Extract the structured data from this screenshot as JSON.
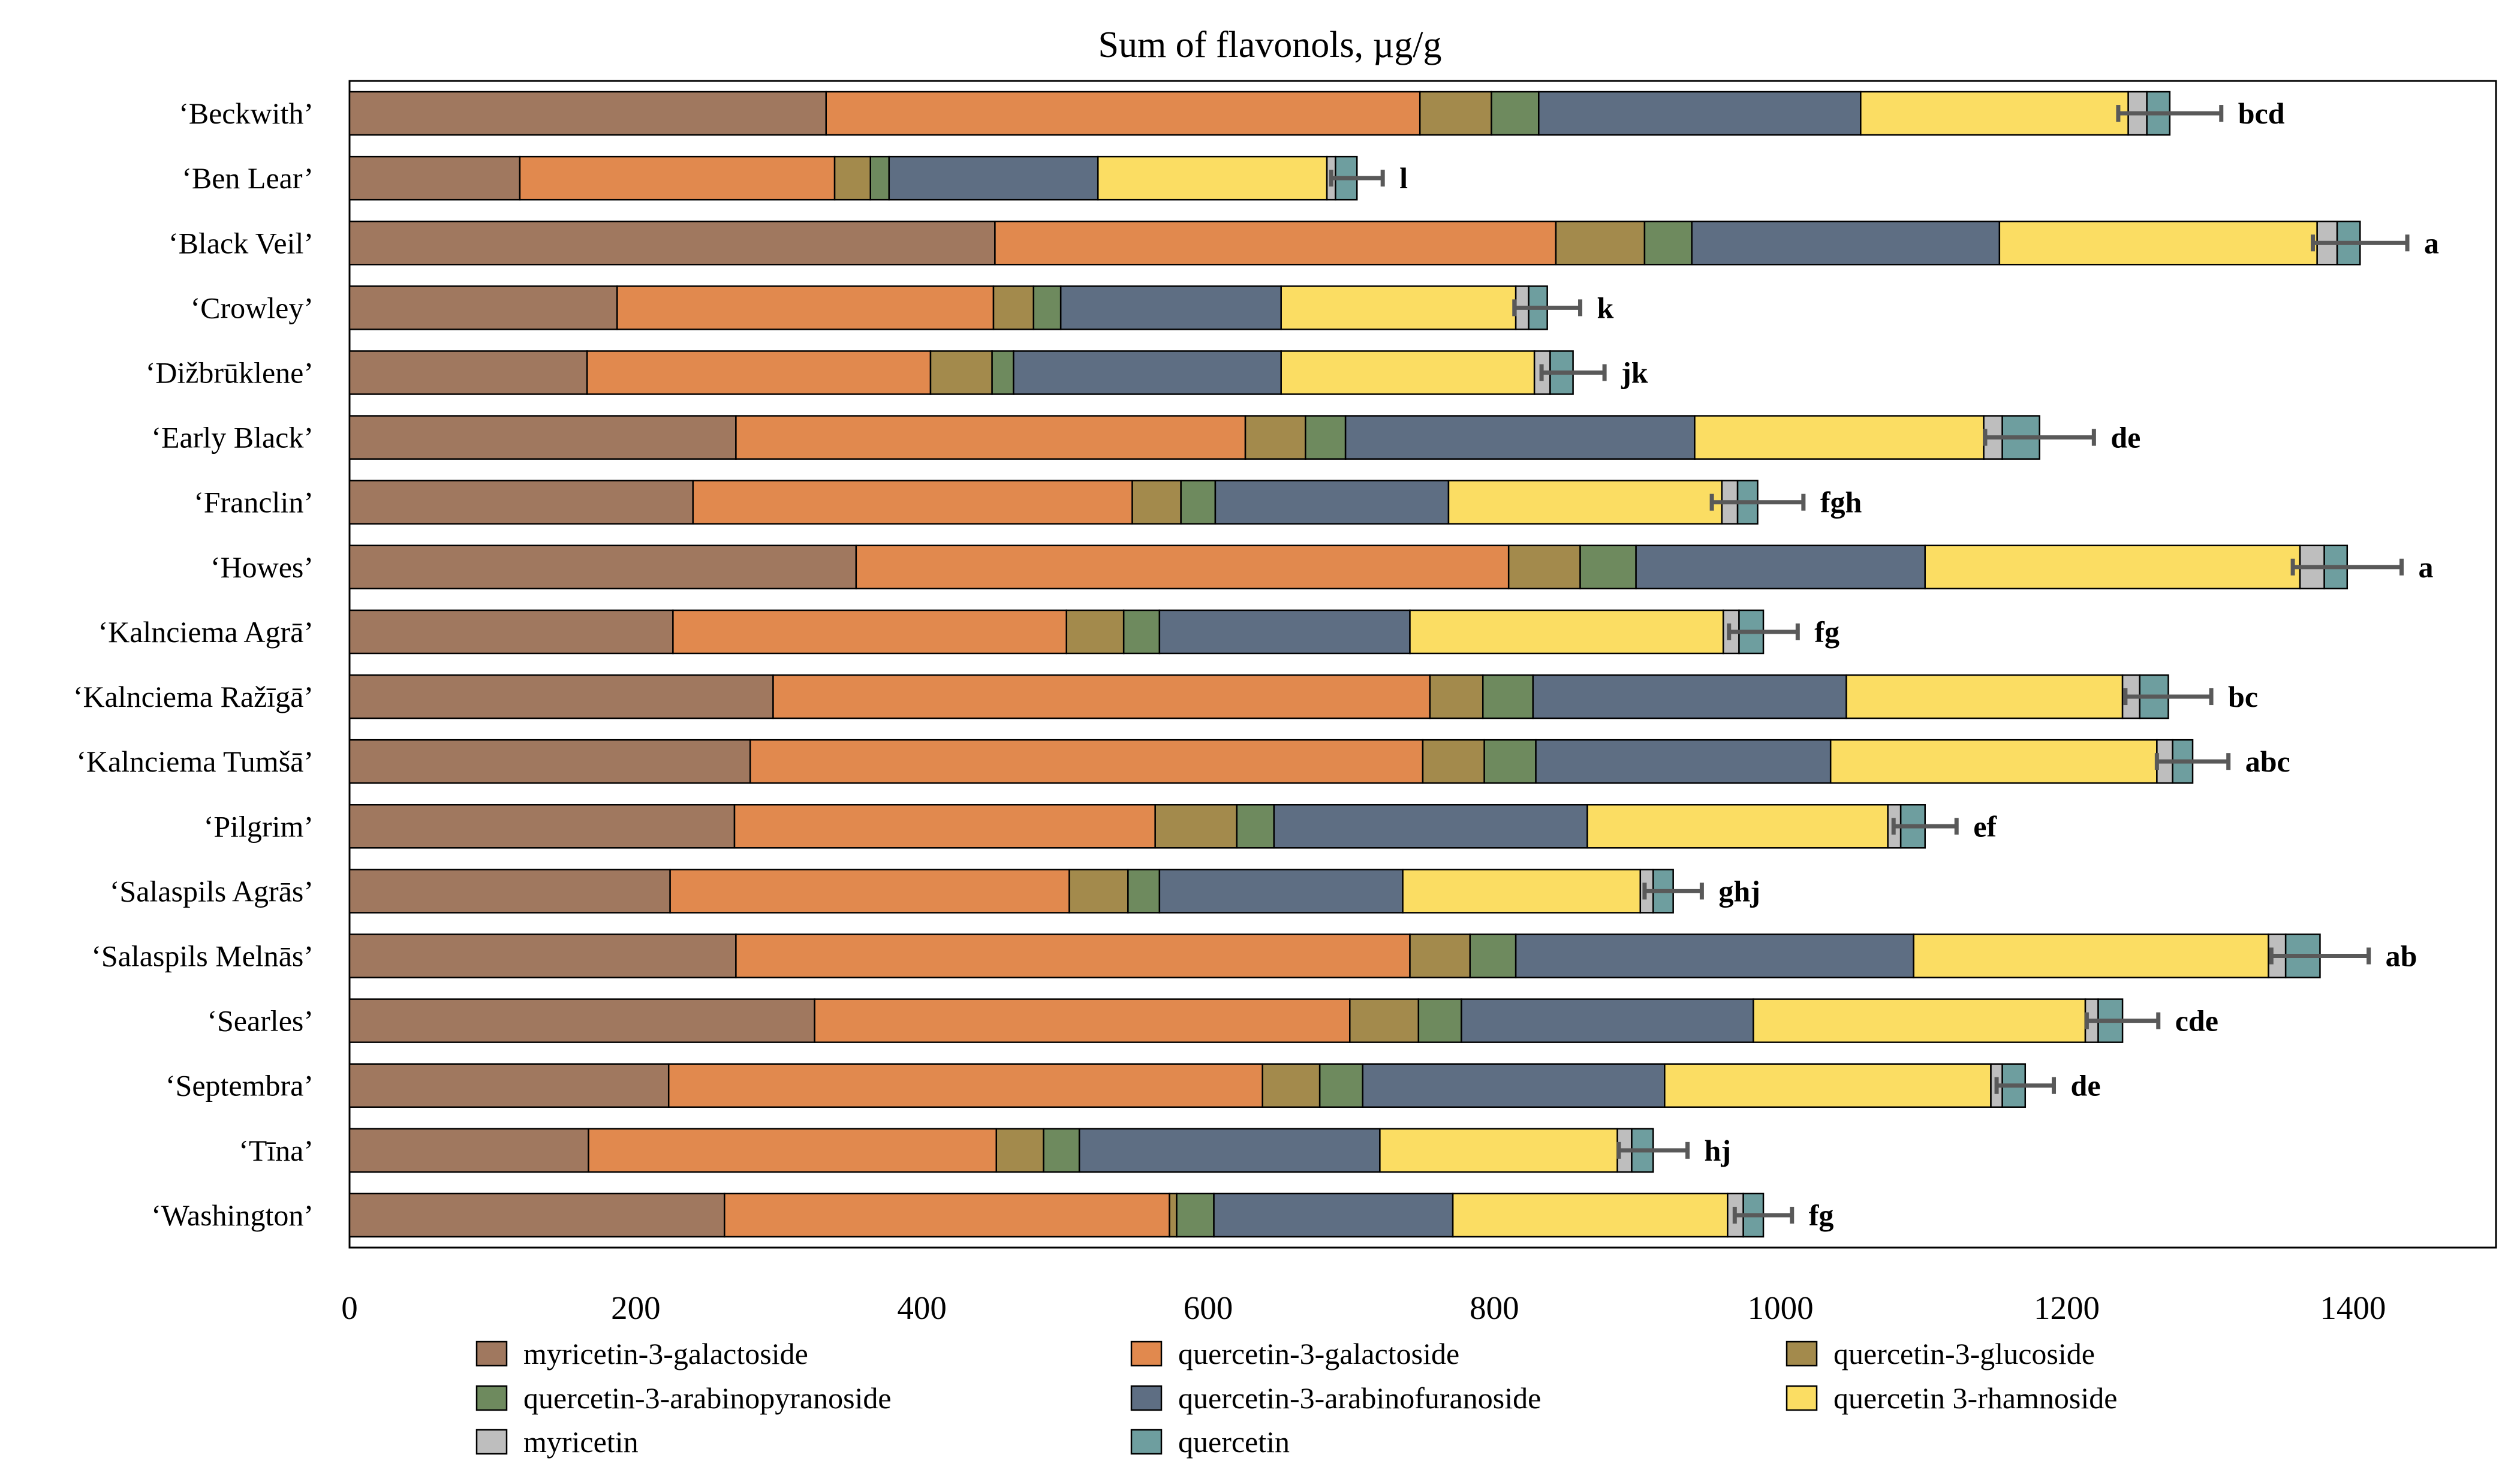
{
  "chart_data": {
    "type": "bar",
    "orientation": "horizontal",
    "stacked": true,
    "title": "Sum of flavonols, µg/g",
    "xlabel": "",
    "ylabel": "",
    "xlim": [
      0,
      1500
    ],
    "xticks": [
      0,
      200,
      400,
      600,
      800,
      1000,
      1200,
      1400
    ],
    "grid": false,
    "legend_position": "bottom",
    "categories": [
      "‘Beckwith’",
      "‘Ben Lear’",
      "‘Black Veil’",
      "‘Crowley’",
      "‘Dižbrūklene’",
      "‘Early Black’",
      "‘Franclin’",
      "‘Howes’",
      "‘Kalnciema Agrā’",
      "‘Kalnciema Ražīgā’",
      "‘Kalnciema Tumšā’",
      "‘Pilgrim’",
      "‘Salaspils Agrās’",
      "‘Salaspils Melnās’",
      "‘Searles’",
      "‘Septembra’",
      "‘Tīna’",
      "‘Washington’"
    ],
    "series": [
      {
        "name": "myricetin-3-galactoside",
        "color": "#A0785F",
        "values": [
          333,
          119,
          451,
          187,
          166,
          270,
          240,
          354,
          226,
          296,
          280,
          269,
          224,
          270,
          325,
          223,
          167,
          262
        ]
      },
      {
        "name": "quercetin-3-galactoside",
        "color": "#E1894E",
        "values": [
          415,
          220,
          392,
          263,
          240,
          356,
          307,
          456,
          275,
          459,
          470,
          294,
          279,
          471,
          374,
          415,
          285,
          311
        ]
      },
      {
        "name": "quercetin-3-glucoside",
        "color": "#A38A4C",
        "values": [
          50,
          25,
          62,
          28,
          43,
          42,
          34,
          50,
          40,
          37,
          43,
          57,
          41,
          42,
          48,
          40,
          33,
          5
        ]
      },
      {
        "name": "quercetin-3-arabinopyranoside",
        "color": "#6E8A5E",
        "values": [
          33,
          13,
          33,
          19,
          15,
          28,
          24,
          39,
          25,
          35,
          36,
          26,
          22,
          32,
          30,
          30,
          25,
          26
        ]
      },
      {
        "name": "quercetin-3-arabinofuranoside",
        "color": "#5E6E83",
        "values": [
          225,
          146,
          215,
          154,
          187,
          244,
          163,
          202,
          175,
          219,
          206,
          219,
          170,
          278,
          204,
          211,
          210,
          167
        ]
      },
      {
        "name": "quercetin 3-rhamnoside",
        "color": "#FBDD63",
        "values": [
          187,
          160,
          222,
          164,
          177,
          202,
          191,
          262,
          219,
          193,
          228,
          210,
          166,
          248,
          232,
          228,
          166,
          192
        ]
      },
      {
        "name": "myricetin",
        "color": "#BEBEBE",
        "values": [
          13,
          6,
          14,
          9,
          11,
          13,
          11,
          17,
          11,
          12,
          11,
          9,
          9,
          12,
          9,
          8,
          10,
          11
        ]
      },
      {
        "name": "quercetin",
        "color": "#6E9E9F",
        "values": [
          16,
          15,
          16,
          13,
          16,
          26,
          14,
          16,
          17,
          20,
          14,
          17,
          14,
          24,
          17,
          16,
          15,
          14
        ]
      }
    ],
    "error_bars": [
      36,
      18,
      33,
      23,
      22,
      38,
      32,
      38,
      24,
      30,
      25,
      22,
      20,
      34,
      25,
      20,
      24,
      20
    ],
    "significance_letters": [
      "bcd",
      "l",
      "a",
      "k",
      "jk",
      "de",
      "fgh",
      "a",
      "fg",
      "bc",
      "abc",
      "ef",
      "ghj",
      "ab",
      "cde",
      "de",
      "hj",
      "fg"
    ]
  }
}
